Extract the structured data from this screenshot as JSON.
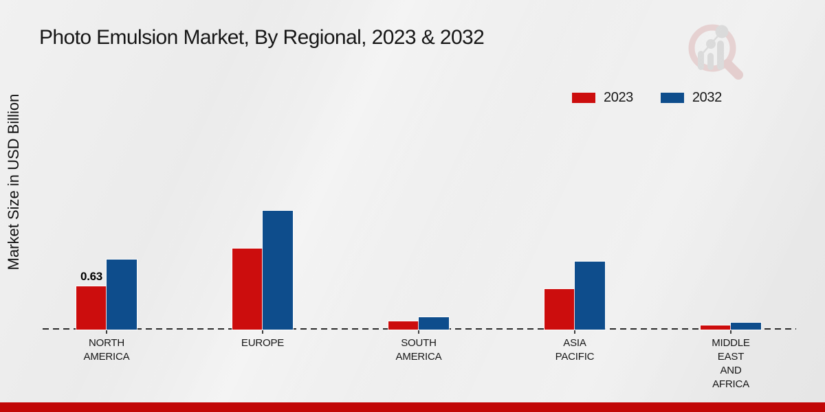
{
  "page": {
    "title": "Photo Emulsion Market, By Regional, 2023 & 2032",
    "y_axis_label": "Market Size in USD Billion"
  },
  "branding": {
    "logo_icon": "magnifier-bar-chart-watermark",
    "accent_bar_color": "#c10606",
    "ring_color": "#ddb4b4",
    "glyph_color": "#c6c6c6"
  },
  "chart_data": {
    "type": "bar",
    "title": "Photo Emulsion Market, By Regional, 2023 & 2032",
    "xlabel": "",
    "ylabel": "Market Size in USD Billion",
    "categories": [
      "NORTH AMERICA",
      "EUROPE",
      "SOUTH AMERICA",
      "ASIA PACIFIC",
      "MIDDLE EAST AND AFRICA"
    ],
    "series": [
      {
        "name": "2023",
        "color": "#cc0d0d",
        "values": [
          0.63,
          1.18,
          0.12,
          0.59,
          0.06
        ],
        "labels": [
          "0.63",
          "",
          "",
          "",
          ""
        ]
      },
      {
        "name": "2032",
        "color": "#0e4d8c",
        "values": [
          1.02,
          1.73,
          0.18,
          0.99,
          0.1
        ],
        "labels": [
          "",
          "",
          "",
          "",
          ""
        ]
      }
    ],
    "ylim": [
      0,
      2
    ],
    "grid": false,
    "baseline_style": "dashed",
    "legend_position": "top-right",
    "annotation": "0.63"
  }
}
